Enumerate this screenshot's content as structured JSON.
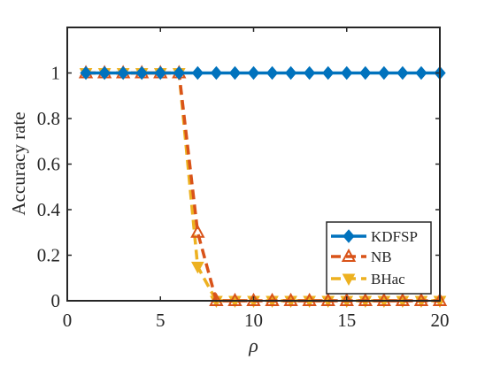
{
  "chart_data": {
    "type": "line",
    "title": "",
    "xlabel": "ρ",
    "ylabel": "Accuracy rate",
    "xlim": [
      0,
      20
    ],
    "ylim": [
      0,
      1.2
    ],
    "xticks": [
      0,
      5,
      10,
      15,
      20
    ],
    "xtick_labels": [
      "0",
      "5",
      "10",
      "15",
      "20"
    ],
    "yticks": [
      0,
      0.2,
      0.4,
      0.6,
      0.8,
      1
    ],
    "ytick_labels": [
      "0",
      "0.2",
      "0.4",
      "0.6",
      "0.8",
      "1"
    ],
    "grid": false,
    "legend_position": "bottom-right",
    "x": [
      1,
      2,
      3,
      4,
      5,
      6,
      7,
      8,
      9,
      10,
      11,
      12,
      13,
      14,
      15,
      16,
      17,
      18,
      19,
      20
    ],
    "series": [
      {
        "name": "KDFSP",
        "color": "#0072BD",
        "line_style": "solid",
        "marker": "diamond",
        "values": [
          1,
          1,
          1,
          1,
          1,
          1,
          1,
          1,
          1,
          1,
          1,
          1,
          1,
          1,
          1,
          1,
          1,
          1,
          1,
          1
        ]
      },
      {
        "name": "NB",
        "color": "#D95319",
        "line_style": "dashed",
        "marker": "triangle-up",
        "values": [
          1,
          1,
          1,
          1,
          1,
          1,
          0.3,
          0,
          0,
          0,
          0,
          0,
          0,
          0,
          0,
          0,
          0,
          0,
          0,
          0
        ]
      },
      {
        "name": "BHac",
        "color": "#EDB120",
        "line_style": "dashed",
        "marker": "triangle-down",
        "values": [
          1,
          1,
          1,
          1,
          1,
          1,
          0.15,
          0,
          0,
          0,
          0,
          0,
          0,
          0,
          0,
          0,
          0,
          0,
          0,
          0
        ]
      }
    ]
  }
}
